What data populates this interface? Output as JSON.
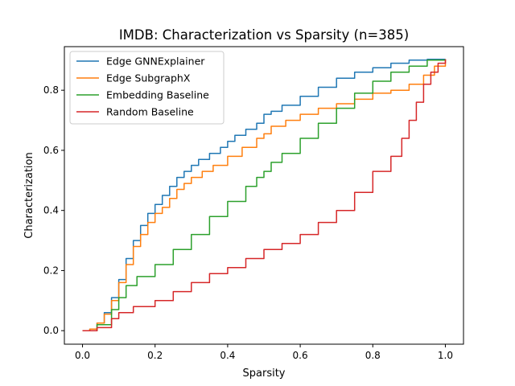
{
  "chart_data": {
    "type": "line",
    "title": "IMDB: Characterization vs Sparsity (n=385)",
    "xlabel": "Sparsity",
    "ylabel": "Characterization",
    "xlim": [
      -0.05,
      1.05
    ],
    "ylim": [
      -0.045,
      0.945
    ],
    "xticks": [
      0.0,
      0.2,
      0.4,
      0.6,
      0.8,
      1.0
    ],
    "xtick_labels": [
      "0.0",
      "0.2",
      "0.4",
      "0.6",
      "0.8",
      "1.0"
    ],
    "yticks": [
      0.0,
      0.2,
      0.4,
      0.6,
      0.8
    ],
    "ytick_labels": [
      "0.0",
      "0.2",
      "0.4",
      "0.6",
      "0.8"
    ],
    "grid": false,
    "legend_position": "upper-left",
    "series": [
      {
        "name": "Edge GNNExplainer",
        "color": "#1f77b4",
        "x": [
          0.0,
          0.02,
          0.04,
          0.06,
          0.08,
          0.1,
          0.12,
          0.14,
          0.16,
          0.18,
          0.2,
          0.22,
          0.24,
          0.26,
          0.28,
          0.3,
          0.32,
          0.35,
          0.38,
          0.4,
          0.42,
          0.45,
          0.48,
          0.5,
          0.52,
          0.55,
          0.6,
          0.65,
          0.7,
          0.75,
          0.8,
          0.85,
          0.9,
          0.95,
          1.0
        ],
        "y": [
          0.0,
          0.005,
          0.025,
          0.06,
          0.11,
          0.17,
          0.24,
          0.3,
          0.35,
          0.39,
          0.42,
          0.45,
          0.48,
          0.51,
          0.53,
          0.55,
          0.57,
          0.59,
          0.61,
          0.63,
          0.65,
          0.67,
          0.69,
          0.72,
          0.73,
          0.75,
          0.78,
          0.81,
          0.84,
          0.86,
          0.875,
          0.89,
          0.9,
          0.903,
          0.903
        ]
      },
      {
        "name": "Edge SubgraphX",
        "color": "#ff7f0e",
        "x": [
          0.0,
          0.02,
          0.04,
          0.06,
          0.08,
          0.1,
          0.12,
          0.14,
          0.16,
          0.18,
          0.2,
          0.22,
          0.24,
          0.26,
          0.28,
          0.3,
          0.33,
          0.36,
          0.4,
          0.44,
          0.48,
          0.5,
          0.52,
          0.56,
          0.6,
          0.65,
          0.7,
          0.75,
          0.8,
          0.85,
          0.9,
          0.94,
          0.97,
          1.0
        ],
        "y": [
          0.0,
          0.005,
          0.025,
          0.055,
          0.1,
          0.16,
          0.22,
          0.28,
          0.32,
          0.36,
          0.39,
          0.41,
          0.44,
          0.47,
          0.49,
          0.51,
          0.53,
          0.55,
          0.58,
          0.61,
          0.64,
          0.655,
          0.68,
          0.7,
          0.72,
          0.74,
          0.755,
          0.77,
          0.79,
          0.8,
          0.82,
          0.85,
          0.88,
          0.903
        ]
      },
      {
        "name": "Embedding Baseline",
        "color": "#2ca02c",
        "x": [
          0.0,
          0.04,
          0.08,
          0.1,
          0.12,
          0.15,
          0.2,
          0.25,
          0.3,
          0.35,
          0.4,
          0.45,
          0.48,
          0.5,
          0.52,
          0.55,
          0.6,
          0.65,
          0.7,
          0.75,
          0.8,
          0.85,
          0.9,
          0.95,
          1.0
        ],
        "y": [
          0.0,
          0.02,
          0.07,
          0.11,
          0.15,
          0.18,
          0.22,
          0.27,
          0.32,
          0.38,
          0.43,
          0.48,
          0.51,
          0.53,
          0.56,
          0.59,
          0.64,
          0.69,
          0.74,
          0.79,
          0.83,
          0.86,
          0.88,
          0.9,
          0.903
        ]
      },
      {
        "name": "Random Baseline",
        "color": "#d62728",
        "x": [
          0.0,
          0.04,
          0.08,
          0.1,
          0.14,
          0.2,
          0.25,
          0.3,
          0.35,
          0.4,
          0.45,
          0.5,
          0.55,
          0.6,
          0.65,
          0.7,
          0.75,
          0.8,
          0.85,
          0.88,
          0.9,
          0.92,
          0.94,
          0.96,
          0.98,
          1.0
        ],
        "y": [
          0.0,
          0.01,
          0.04,
          0.06,
          0.08,
          0.1,
          0.13,
          0.16,
          0.19,
          0.21,
          0.24,
          0.27,
          0.29,
          0.32,
          0.36,
          0.4,
          0.46,
          0.53,
          0.58,
          0.64,
          0.7,
          0.76,
          0.82,
          0.86,
          0.89,
          0.903
        ]
      }
    ]
  }
}
